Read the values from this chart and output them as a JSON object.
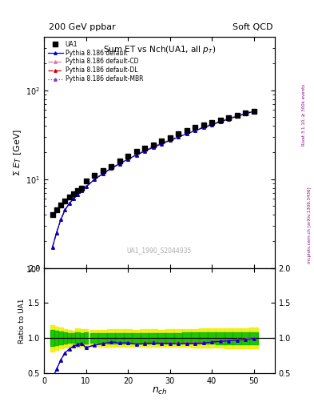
{
  "title": "Sum ET vs Nch(UA1, all p_{T})",
  "header_left": "200 GeV ppbar",
  "header_right": "Soft QCD",
  "watermark": "UA1_1990_S2044935",
  "right_label_bottom": "mcplots.cern.ch [arXiv:1306.3436]",
  "right_label_top": "Rivet 3.1.10, ≥ 300k events",
  "xlabel": "$n_{ch}$",
  "ylabel": "$\\Sigma\\ E_T$ [GeV]",
  "ratio_ylabel": "Ratio to UA1",
  "ua1_x": [
    2,
    3,
    4,
    5,
    6,
    7,
    8,
    9,
    10,
    12,
    14,
    16,
    18,
    20,
    22,
    24,
    26,
    28,
    30,
    32,
    34,
    36,
    38,
    40,
    42,
    44,
    46,
    48,
    50
  ],
  "ua1_y": [
    4.0,
    4.5,
    5.1,
    5.7,
    6.3,
    6.8,
    7.4,
    8.0,
    9.5,
    11.0,
    12.5,
    14.0,
    16.0,
    18.0,
    20.5,
    22.5,
    24.5,
    27.0,
    29.5,
    32.5,
    35.0,
    38.0,
    41.0,
    43.5,
    46.5,
    49.5,
    52.5,
    55.5,
    58.5
  ],
  "ua1_yerr": [
    0.3,
    0.3,
    0.3,
    0.3,
    0.3,
    0.3,
    0.4,
    0.4,
    0.5,
    0.5,
    0.6,
    0.7,
    0.8,
    0.9,
    1.0,
    1.1,
    1.2,
    1.3,
    1.5,
    1.6,
    1.8,
    2.0,
    2.2,
    2.4,
    2.6,
    2.8,
    3.0,
    3.2,
    3.4
  ],
  "mc_x": [
    2,
    3,
    4,
    5,
    6,
    7,
    8,
    9,
    10,
    12,
    14,
    16,
    18,
    20,
    22,
    24,
    26,
    28,
    30,
    32,
    34,
    36,
    38,
    40,
    42,
    44,
    46,
    48,
    50
  ],
  "default_y": [
    1.7,
    2.5,
    3.5,
    4.5,
    5.3,
    6.0,
    6.7,
    7.4,
    8.2,
    9.9,
    11.5,
    13.2,
    14.9,
    16.8,
    18.7,
    20.7,
    22.8,
    25.0,
    27.3,
    29.8,
    32.4,
    35.2,
    38.1,
    41.1,
    44.3,
    47.6,
    51.0,
    54.5,
    58.1
  ],
  "cd_y": [
    1.7,
    2.5,
    3.5,
    4.5,
    5.3,
    6.0,
    6.7,
    7.4,
    8.2,
    9.9,
    11.5,
    13.2,
    14.9,
    16.9,
    18.8,
    20.8,
    23.0,
    25.2,
    27.6,
    30.1,
    32.7,
    35.5,
    38.4,
    41.4,
    44.6,
    47.9,
    51.4,
    54.9,
    58.5
  ],
  "dl_y": [
    1.7,
    2.5,
    3.5,
    4.5,
    5.3,
    6.0,
    6.7,
    7.4,
    8.2,
    9.9,
    11.5,
    13.3,
    15.0,
    16.9,
    18.9,
    20.9,
    23.1,
    25.3,
    27.7,
    30.2,
    32.8,
    35.6,
    38.5,
    41.5,
    44.7,
    48.0,
    51.5,
    55.0,
    58.6
  ],
  "mbr_y": [
    1.7,
    2.5,
    3.5,
    4.5,
    5.3,
    6.0,
    6.7,
    7.4,
    8.2,
    9.9,
    11.5,
    13.2,
    14.9,
    16.8,
    18.7,
    20.7,
    22.8,
    25.0,
    27.3,
    29.8,
    32.4,
    35.2,
    38.1,
    41.1,
    44.3,
    47.6,
    51.0,
    54.5,
    58.1
  ],
  "color_default": "#0000cc",
  "color_cd": "#dd77aa",
  "color_dl": "#cc0000",
  "color_mbr": "#7744bb",
  "band_yellow": "#eeee00",
  "band_green": "#00bb00",
  "xlim": [
    0,
    55
  ],
  "ylim_main": [
    1.0,
    400
  ],
  "ylim_ratio": [
    0.5,
    2.0
  ],
  "ratio_yticks": [
    0.5,
    1.0,
    1.5,
    2.0
  ]
}
